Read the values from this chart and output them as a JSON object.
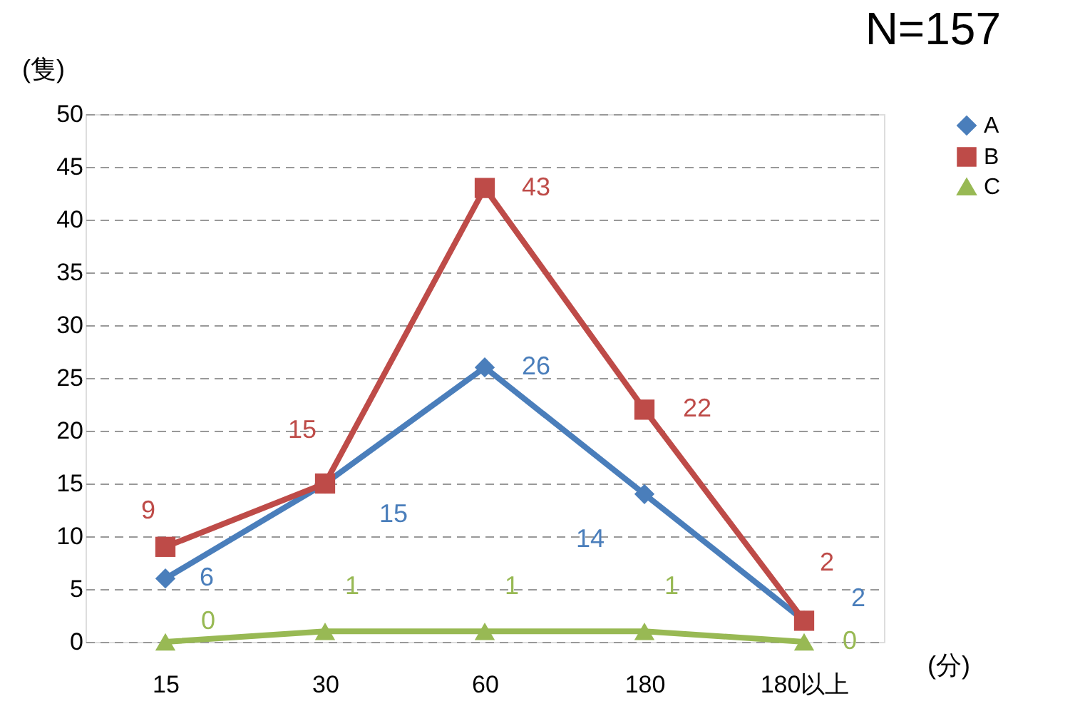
{
  "chart_data": {
    "type": "line",
    "title": "N=157",
    "ylabel": "(隻)",
    "xlabel": "(分)",
    "categories": [
      "15",
      "30",
      "60",
      "180",
      "180以上"
    ],
    "series": [
      {
        "name": "A",
        "color": "#4a7ebb",
        "marker": "diamond",
        "values": [
          6,
          15,
          26,
          14,
          2
        ]
      },
      {
        "name": "B",
        "color": "#be4b48",
        "marker": "square",
        "values": [
          9,
          15,
          43,
          22,
          2
        ]
      },
      {
        "name": "C",
        "color": "#98b954",
        "marker": "triangle",
        "values": [
          0,
          1,
          1,
          1,
          0
        ]
      }
    ],
    "ylim": [
      0,
      50
    ],
    "yticks": [
      0,
      5,
      10,
      15,
      20,
      25,
      30,
      35,
      40,
      45,
      50
    ],
    "grid": "y",
    "legend": "right",
    "data_labels": true,
    "line_style": "solid"
  }
}
